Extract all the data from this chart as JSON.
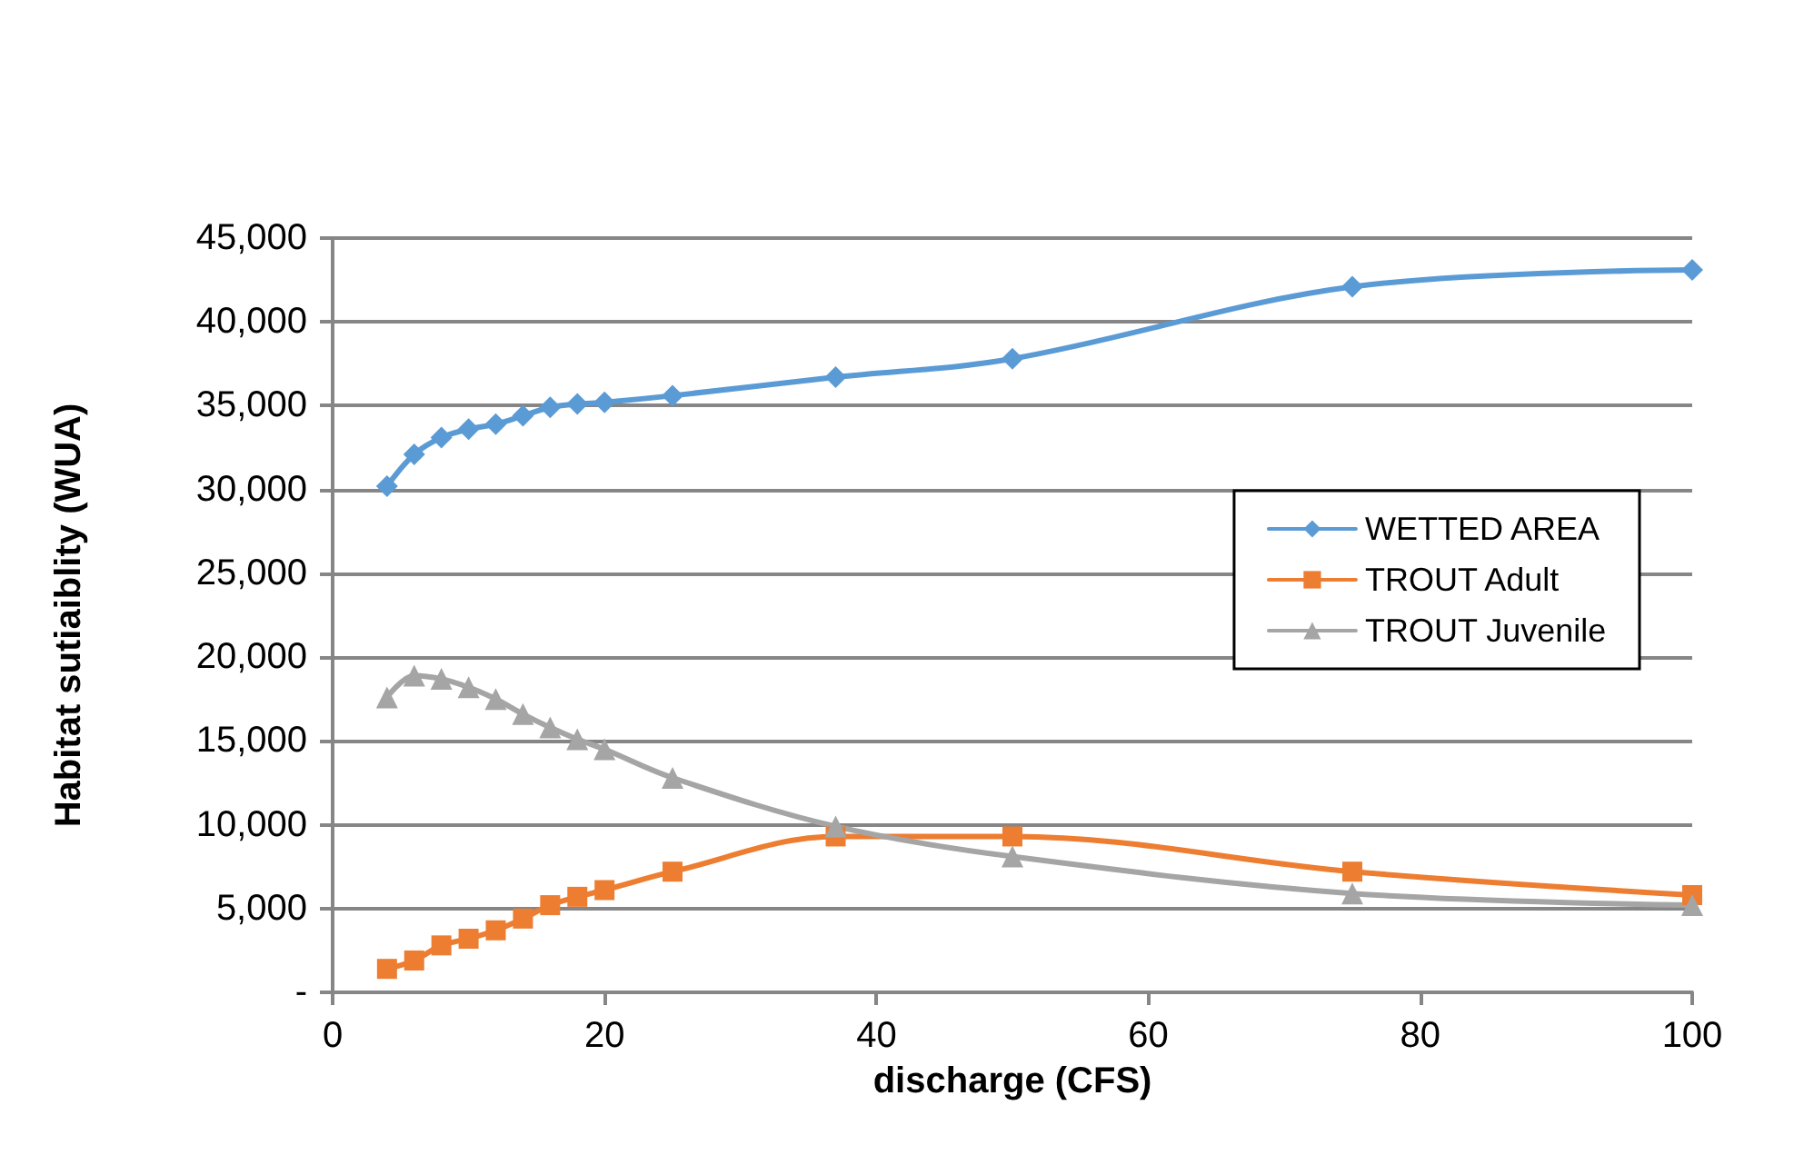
{
  "chart_data": {
    "type": "line",
    "xlabel": "discharge (CFS)",
    "ylabel": "Habitat sutiaiblity (WUA)",
    "x": [
      4,
      6,
      8,
      10,
      12,
      14,
      16,
      18,
      20,
      25,
      37,
      50,
      75,
      100
    ],
    "series": [
      {
        "name": "WETTED AREA",
        "color": "#5b9bd5",
        "marker": "diamond",
        "values": [
          30200,
          32100,
          33100,
          33600,
          33900,
          34400,
          34900,
          35100,
          35200,
          35600,
          36700,
          37800,
          42100,
          43100
        ]
      },
      {
        "name": "TROUT Adult",
        "color": "#ed7d31",
        "marker": "square",
        "values": [
          1400,
          1900,
          2800,
          3200,
          3700,
          4400,
          5200,
          5700,
          6100,
          7200,
          9300,
          9300,
          7200,
          5800
        ]
      },
      {
        "name": "TROUT Juvenile",
        "color": "#a5a5a5",
        "marker": "triangle",
        "values": [
          17600,
          18900,
          18700,
          18200,
          17500,
          16600,
          15800,
          15100,
          14500,
          12800,
          9900,
          8100,
          5900,
          5200
        ]
      }
    ],
    "xlim": [
      0,
      100
    ],
    "xticks": [
      0,
      20,
      40,
      60,
      80,
      100
    ],
    "ylim": [
      0,
      45000
    ],
    "yticks": [
      {
        "value": 0,
        "label": "-"
      },
      {
        "value": 5000,
        "label": "5,000"
      },
      {
        "value": 10000,
        "label": "10,000"
      },
      {
        "value": 15000,
        "label": "15,000"
      },
      {
        "value": 20000,
        "label": "20,000"
      },
      {
        "value": 25000,
        "label": "25,000"
      },
      {
        "value": 30000,
        "label": "30,000"
      },
      {
        "value": 35000,
        "label": "35,000"
      },
      {
        "value": 40000,
        "label": "40,000"
      },
      {
        "value": 45000,
        "label": "45,000"
      }
    ],
    "grid": "y",
    "legend": "right",
    "line_style": "solid"
  }
}
